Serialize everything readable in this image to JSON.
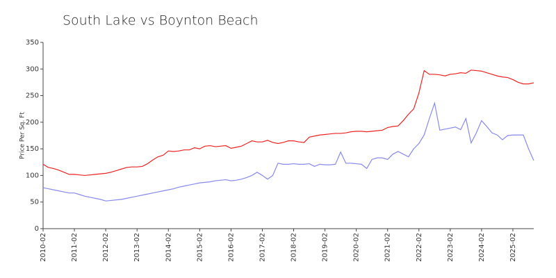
{
  "chart_data": {
    "type": "line",
    "title": "South Lake vs Boynton Beach",
    "y_label": "Price Per Sq. Ft",
    "x": [
      "2010-02",
      "2010-04",
      "2010-06",
      "2010-08",
      "2010-10",
      "2010-12",
      "2011-02",
      "2011-04",
      "2011-06",
      "2011-08",
      "2011-10",
      "2011-12",
      "2012-02",
      "2012-04",
      "2012-06",
      "2012-08",
      "2012-10",
      "2012-12",
      "2013-02",
      "2013-04",
      "2013-06",
      "2013-08",
      "2013-10",
      "2013-12",
      "2014-02",
      "2014-04",
      "2014-06",
      "2014-08",
      "2014-10",
      "2014-12",
      "2015-02",
      "2015-04",
      "2015-06",
      "2015-08",
      "2015-10",
      "2015-12",
      "2016-02",
      "2016-04",
      "2016-06",
      "2016-08",
      "2016-10",
      "2016-12",
      "2017-02",
      "2017-04",
      "2017-06",
      "2017-08",
      "2017-10",
      "2017-12",
      "2018-02",
      "2018-04",
      "2018-06",
      "2018-08",
      "2018-10",
      "2018-12",
      "2019-02",
      "2019-04",
      "2019-06",
      "2019-08",
      "2019-10",
      "2019-12",
      "2020-02",
      "2020-04",
      "2020-06",
      "2020-08",
      "2020-10",
      "2020-12",
      "2021-02",
      "2021-04",
      "2021-06",
      "2021-08",
      "2021-10",
      "2021-12",
      "2022-02",
      "2022-04",
      "2022-06",
      "2022-08",
      "2022-10",
      "2022-12",
      "2023-02",
      "2023-04",
      "2023-06",
      "2023-08",
      "2023-10",
      "2023-12",
      "2024-02",
      "2024-04",
      "2024-06",
      "2024-08",
      "2024-10",
      "2024-12",
      "2025-02",
      "2025-04",
      "2025-06",
      "2025-08",
      "2025-10"
    ],
    "series": [
      {
        "color": "#ee2222",
        "values": [
          121,
          115,
          113,
          110,
          106,
          102,
          102,
          101,
          100,
          101,
          102,
          103,
          104,
          106,
          109,
          112,
          115,
          116,
          116,
          117,
          122,
          129,
          135,
          138,
          146,
          145,
          146,
          148,
          148,
          152,
          150,
          155,
          156,
          154,
          155,
          156,
          151,
          153,
          155,
          160,
          165,
          163,
          163,
          166,
          162,
          160,
          162,
          165,
          165,
          163,
          162,
          172,
          174,
          176,
          177,
          178,
          179,
          179,
          180,
          182,
          183,
          183,
          182,
          183,
          184,
          185,
          190,
          192,
          193,
          203,
          215,
          225,
          255,
          297,
          290,
          290,
          289,
          287,
          290,
          291,
          293,
          292,
          298,
          297,
          296,
          293,
          290,
          287,
          285,
          284,
          280,
          275,
          272,
          272,
          274
        ]
      },
      {
        "color": "#8888ee",
        "values": [
          77,
          75,
          73,
          71,
          69,
          67,
          67,
          64,
          61,
          59,
          57,
          55,
          52,
          53,
          54,
          55,
          57,
          59,
          61,
          63,
          65,
          67,
          69,
          71,
          73,
          75,
          78,
          80,
          82,
          84,
          86,
          87,
          88,
          90,
          91,
          92,
          90,
          91,
          93,
          96,
          100,
          106,
          100,
          93,
          100,
          123,
          121,
          121,
          122,
          121,
          121,
          122,
          117,
          121,
          120,
          120,
          121,
          144,
          123,
          123,
          122,
          121,
          113,
          130,
          133,
          133,
          130,
          140,
          145,
          140,
          135,
          150,
          160,
          176,
          207,
          236,
          185,
          187,
          189,
          191,
          186,
          207,
          161,
          180,
          203,
          192,
          180,
          176,
          167,
          175,
          176,
          176,
          176,
          150,
          128
        ]
      }
    ],
    "xticks": [
      "2010-02",
      "2011-02",
      "2012-02",
      "2013-02",
      "2014-02",
      "2015-02",
      "2016-02",
      "2017-02",
      "2018-02",
      "2019-02",
      "2020-02",
      "2021-02",
      "2022-02",
      "2023-02",
      "2024-02",
      "2025-02"
    ],
    "ylim": [
      0,
      350
    ],
    "yticks": [
      0,
      50,
      100,
      150,
      200,
      250,
      300,
      350
    ],
    "grid": false
  }
}
